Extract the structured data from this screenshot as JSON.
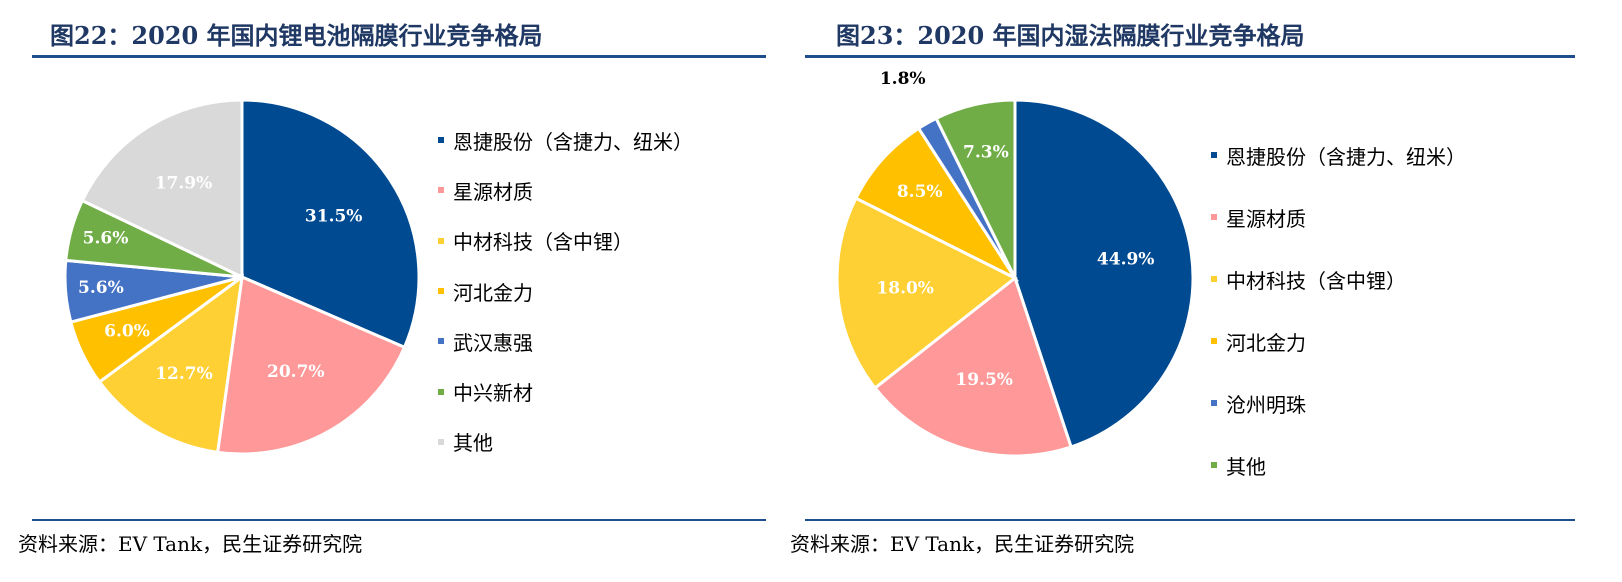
{
  "left": {
    "title": "图22：2020 年国内锂电池隔膜行业竞争格局",
    "source": "资料来源：EV Tank，民生证券研究院"
  },
  "right": {
    "title": "图23：2020 年国内湿法隔膜行业竞争格局",
    "source": "资料来源：EV Tank，民生证券研究院"
  },
  "chart_data": [
    {
      "type": "pie",
      "title": "2020 年国内锂电池隔膜行业竞争格局",
      "legend_position": "right",
      "slices": [
        {
          "name": "恩捷股份（含捷力、纽米）",
          "value": 31.5,
          "label": "31.5%",
          "color": "#004A91",
          "label_color": "#ffffff"
        },
        {
          "name": "星源材质",
          "value": 20.7,
          "label": "20.7%",
          "color": "#FF9999",
          "label_color": "#ffffff"
        },
        {
          "name": "中材科技（含中锂）",
          "value": 12.7,
          "label": "12.7%",
          "color": "#FFD033",
          "label_color": "#ffffff"
        },
        {
          "name": "河北金力",
          "value": 6.0,
          "label": "6.0%",
          "color": "#FFC000",
          "label_color": "#ffffff"
        },
        {
          "name": "武汉惠强",
          "value": 5.6,
          "label": "5.6%",
          "color": "#4472C4",
          "label_color": "#ffffff"
        },
        {
          "name": "中兴新材",
          "value": 5.6,
          "label": "5.6%",
          "color": "#70AD47",
          "label_color": "#ffffff"
        },
        {
          "name": "其他",
          "value": 17.9,
          "label": "17.9%",
          "color": "#D9D9D9",
          "label_color": "#ffffff"
        }
      ]
    },
    {
      "type": "pie",
      "title": "2020 年国内湿法隔膜行业竞争格局",
      "legend_position": "right",
      "slices": [
        {
          "name": "恩捷股份（含捷力、纽米）",
          "value": 44.9,
          "label": "44.9%",
          "color": "#004A91",
          "label_color": "#ffffff"
        },
        {
          "name": "星源材质",
          "value": 19.5,
          "label": "19.5%",
          "color": "#FF9999",
          "label_color": "#ffffff"
        },
        {
          "name": "中材科技（含中锂）",
          "value": 18.0,
          "label": "18.0%",
          "color": "#FFD033",
          "label_color": "#ffffff"
        },
        {
          "name": "河北金力",
          "value": 8.5,
          "label": "8.5%",
          "color": "#FFC000",
          "label_color": "#ffffff"
        },
        {
          "name": "沧州明珠",
          "value": 1.8,
          "label": "1.8%",
          "color": "#4472C4",
          "label_color": "#000000"
        },
        {
          "name": "其他",
          "value": 7.3,
          "label": "7.3%",
          "color": "#70AD47",
          "label_color": "#ffffff"
        }
      ]
    }
  ]
}
